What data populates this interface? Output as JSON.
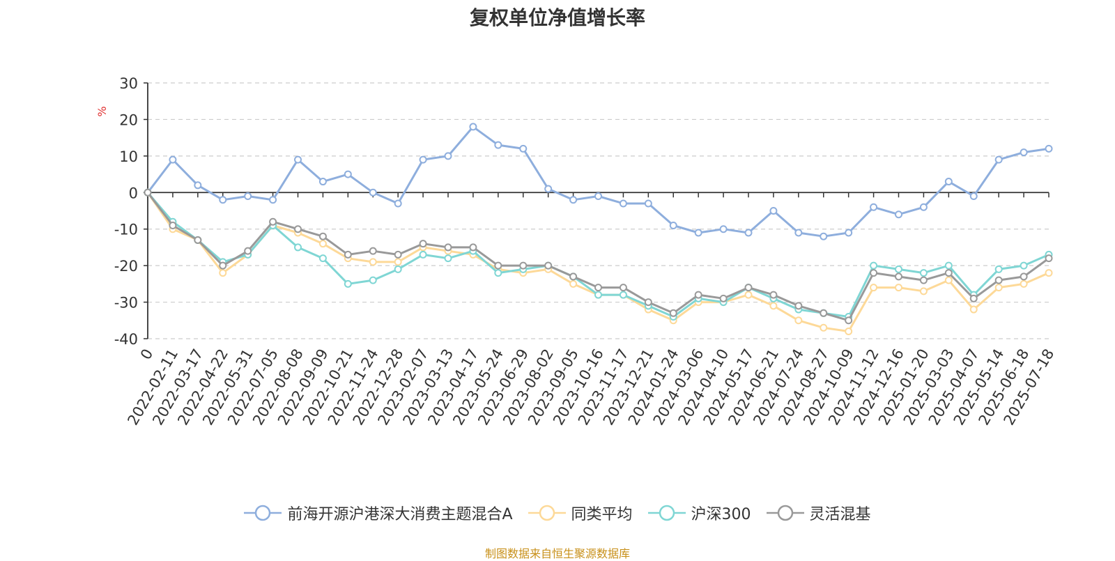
{
  "chart_data": {
    "type": "line",
    "title": "复权单位净值增长率",
    "ylabel": "%",
    "ylim": [
      -40,
      30
    ],
    "y_ticks": [
      "30",
      "20",
      "10",
      "0",
      "-10",
      "-20",
      "-30",
      "-40"
    ],
    "grid": true,
    "legend_position": "bottom",
    "x_ticks": [
      "0",
      "2022-02-11",
      "2022-03-17",
      "2022-04-22",
      "2022-05-31",
      "2022-07-05",
      "2022-08-08",
      "2022-09-09",
      "2022-10-21",
      "2022-11-24",
      "2022-12-28",
      "2023-02-07",
      "2023-03-13",
      "2023-04-17",
      "2023-05-24",
      "2023-06-29",
      "2023-08-02",
      "2023-09-05",
      "2023-10-16",
      "2023-11-17",
      "2023-12-21",
      "2024-01-24",
      "2024-03-06",
      "2024-04-10",
      "2024-05-17",
      "2024-06-21",
      "2024-07-24",
      "2024-08-27",
      "2024-10-09",
      "2024-11-12",
      "2024-12-16",
      "2025-01-20",
      "2025-03-03",
      "2025-04-07",
      "2025-05-14",
      "2025-06-18",
      "2025-07-18"
    ],
    "series": [
      {
        "name": "前海开源沪港深大消费主题混合A",
        "color": "#8eaedd",
        "values": [
          0,
          9,
          2,
          -2,
          -1,
          -2,
          9,
          3,
          5,
          0,
          -3,
          9,
          10,
          18,
          13,
          12,
          1,
          -2,
          -1,
          -3,
          -3,
          -9,
          -11,
          -10,
          -11,
          -5,
          -11,
          -12,
          -11,
          -4,
          -6,
          -4,
          3,
          -1,
          9,
          11,
          12
        ]
      },
      {
        "name": "同类平均",
        "color": "#fdd998",
        "values": [
          0,
          -10,
          -13,
          -22,
          -17,
          -9,
          -11,
          -14,
          -18,
          -19,
          -19,
          -15,
          -16,
          -17,
          -21,
          -22,
          -21,
          -25,
          -28,
          -28,
          -32,
          -35,
          -30,
          -30,
          -28,
          -31,
          -35,
          -37,
          -38,
          -26,
          -26,
          -27,
          -24,
          -32,
          -26,
          -25,
          -22
        ]
      },
      {
        "name": "沪深300",
        "color": "#7fd6d4",
        "values": [
          0,
          -8,
          -13,
          -19,
          -17,
          -9,
          -15,
          -18,
          -25,
          -24,
          -21,
          -17,
          -18,
          -16,
          -22,
          -21,
          -20,
          -23,
          -28,
          -28,
          -31,
          -34,
          -29,
          -30,
          -26,
          -29,
          -32,
          -33,
          -34,
          -20,
          -21,
          -22,
          -20,
          -28,
          -21,
          -20,
          -17
        ]
      },
      {
        "name": "灵活混基",
        "color": "#999999",
        "values": [
          0,
          -9,
          -13,
          -20,
          -16,
          -8,
          -10,
          -12,
          -17,
          -16,
          -17,
          -14,
          -15,
          -15,
          -20,
          -20,
          -20,
          -23,
          -26,
          -26,
          -30,
          -33,
          -28,
          -29,
          -26,
          -28,
          -31,
          -33,
          -35,
          -22,
          -23,
          -24,
          -22,
          -29,
          -24,
          -23,
          -18
        ]
      }
    ]
  },
  "source_note": "制图数据来自恒生聚源数据库"
}
